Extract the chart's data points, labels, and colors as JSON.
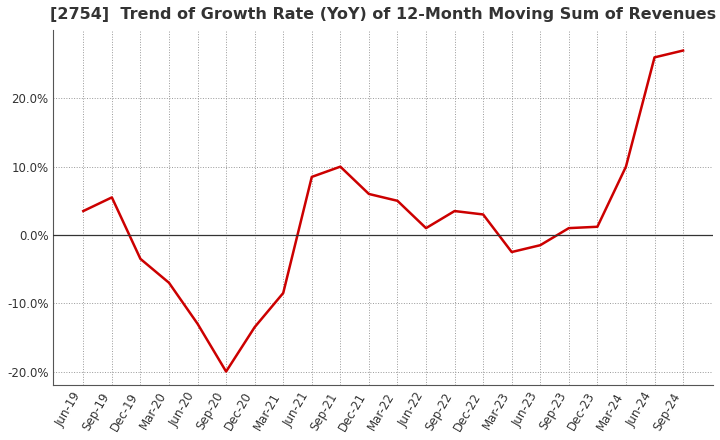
{
  "title": "[2754]  Trend of Growth Rate (YoY) of 12-Month Moving Sum of Revenues",
  "x_labels": [
    "Jun-19",
    "Sep-19",
    "Dec-19",
    "Mar-20",
    "Jun-20",
    "Sep-20",
    "Dec-20",
    "Mar-21",
    "Jun-21",
    "Sep-21",
    "Dec-21",
    "Mar-22",
    "Jun-22",
    "Sep-22",
    "Dec-22",
    "Mar-23",
    "Jun-23",
    "Sep-23",
    "Dec-23",
    "Mar-24",
    "Jun-24",
    "Sep-24"
  ],
  "y_values": [
    3.5,
    5.5,
    -3.5,
    -7.0,
    -13.0,
    -20.0,
    -13.5,
    -8.5,
    8.5,
    10.0,
    6.0,
    5.0,
    1.0,
    3.5,
    3.0,
    -2.5,
    -1.5,
    1.0,
    1.2,
    10.0,
    26.0,
    27.0
  ],
  "line_color": "#cc0000",
  "line_width": 1.8,
  "ylim": [
    -22,
    30
  ],
  "yticks": [
    -20.0,
    -10.0,
    0.0,
    10.0,
    20.0
  ],
  "grid_color": "#999999",
  "bg_color": "#ffffff",
  "title_fontsize": 11.5,
  "tick_fontsize": 8.5,
  "title_color": "#333333"
}
